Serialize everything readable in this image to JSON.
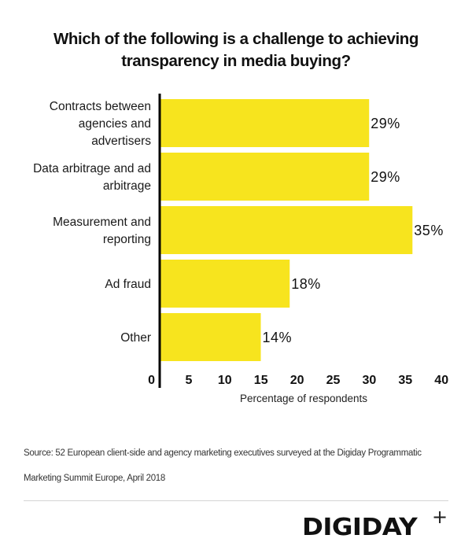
{
  "chart_data": {
    "type": "bar",
    "orientation": "horizontal",
    "title": "Which of the following is a challenge to achieving transparency in media buying?",
    "title_lines": [
      "Which of the following is a challenge to achieving",
      "transparency in media buying?"
    ],
    "categories": [
      "Contracts between agencies and advertisers",
      "Data arbitrage and ad arbitrage",
      "Measurement and reporting",
      "Ad fraud",
      "Other"
    ],
    "category_label_lines": [
      [
        "Contracts between",
        "agencies and",
        "advertisers"
      ],
      [
        "Data arbitrage and ad",
        "arbitrage"
      ],
      [
        "Measurement and",
        "reporting"
      ],
      [
        "Ad fraud"
      ],
      [
        "Other"
      ]
    ],
    "values": [
      29,
      29,
      35,
      18,
      14
    ],
    "value_labels": [
      "29%",
      "29%",
      "35%",
      "18%",
      "14%"
    ],
    "xlabel": "Percentage of respondents",
    "ylabel": "",
    "xlim": [
      0,
      40
    ],
    "x_ticks": [
      0,
      5,
      10,
      15,
      20,
      25,
      30,
      35,
      40
    ],
    "x_tick_labels": [
      "0",
      "5",
      "10",
      "15",
      "20",
      "25",
      "30",
      "35",
      "40"
    ],
    "grid": false,
    "legend": "none",
    "bar_color": "#F7E41E",
    "axis_color": "#000000"
  },
  "footer": {
    "source_line1": "Source: 52 European client-side and agency marketing executives surveyed at the Digiday Programmatic",
    "source_line2": "Marketing Summit Europe, April 2018",
    "logo_text": "DIGIDAY",
    "logo_plus": "+"
  }
}
